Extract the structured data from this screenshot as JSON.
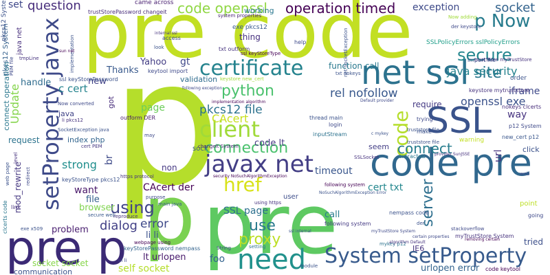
{
  "words": [
    {
      "text": "p",
      "color": "#b5de2b"
    },
    {
      "text": "pre code",
      "color": "#c2df23"
    },
    {
      "text": "pre",
      "color": "#5ec962"
    },
    {
      "text": "code pre",
      "color": "#31688e"
    },
    {
      "text": "p",
      "color": "#7ad151"
    },
    {
      "text": "pre p",
      "color": "#3b2a75"
    },
    {
      "text": "net ssl",
      "color": "#2c728e"
    },
    {
      "text": "SSL",
      "color": "#3a538b"
    },
    {
      "text": "javax net",
      "color": "#433e85"
    },
    {
      "text": "setProperty javax",
      "color": "#3e4a89"
    },
    {
      "text": "need",
      "color": "#21918c"
    },
    {
      "text": "System setProperty",
      "color": "#375a8c"
    },
    {
      "text": "certificate",
      "color": "#25838e"
    },
    {
      "text": "code",
      "color": "#b5de2b"
    },
    {
      "text": "client",
      "color": "#a0da39"
    },
    {
      "text": "p Now",
      "color": "#287c8e"
    },
    {
      "text": "secure",
      "color": "#24868e"
    },
    {
      "text": "connection",
      "color": "#4ac16d"
    },
    {
      "text": "href",
      "color": "#d8e219"
    },
    {
      "text": "proxy",
      "color": "#bddf26"
    },
    {
      "text": "use",
      "color": "#29798e"
    },
    {
      "text": "code openssl",
      "color": "#90d743"
    },
    {
      "text": "operation timed",
      "color": "#440154"
    },
    {
      "text": "question",
      "color": "#472d7b"
    },
    {
      "text": "python",
      "color": "#4ac16d"
    },
    {
      "text": "using",
      "color": "#414487"
    },
    {
      "text": "server",
      "color": "#2e6f8e"
    },
    {
      "text": "site",
      "color": "#2a788e"
    },
    {
      "text": "socket",
      "color": "#33638d"
    },
    {
      "text": "pkcs12 file",
      "color": "#2c728e"
    },
    {
      "text": "connect",
      "color": "#287d8e"
    },
    {
      "text": "openssl exe",
      "color": "#3b528b"
    },
    {
      "text": "java security",
      "color": "#26828e"
    },
    {
      "text": "dialog",
      "color": "#424086"
    },
    {
      "text": "error",
      "color": "#3e4989"
    },
    {
      "text": "SSL page",
      "color": "#2d708e"
    },
    {
      "text": "CAcert der",
      "color": "#440154"
    },
    {
      "text": "c cert",
      "color": "#25848e"
    },
    {
      "text": "rel nofollow",
      "color": "#38588c"
    },
    {
      "text": "strong",
      "color": "#218f8d"
    },
    {
      "text": "page",
      "color": "#6ccd5a"
    },
    {
      "text": "CAcert",
      "color": "#c8e020"
    },
    {
      "text": "Update",
      "color": "#84d44b"
    },
    {
      "text": "cert txt",
      "color": "#24878e"
    },
    {
      "text": "foo",
      "color": "#33638d"
    },
    {
      "text": "self socket",
      "color": "#b5de2b"
    },
    {
      "text": "socket socket",
      "color": "#86d549"
    },
    {
      "text": "exception",
      "color": "#3e4a89"
    },
    {
      "text": "Thanks",
      "color": "#38598c"
    },
    {
      "text": "Yahoo",
      "color": "#433d84"
    },
    {
      "text": "gt",
      "color": "#3f4889"
    },
    {
      "text": "new",
      "color": "#414287"
    },
    {
      "text": "handle",
      "color": "#2f6c8e"
    },
    {
      "text": "iframe",
      "color": "#3e4989"
    },
    {
      "text": "code lt",
      "color": "#453882"
    },
    {
      "text": "timeout",
      "color": "#39568c"
    },
    {
      "text": "url",
      "color": "#46327e"
    },
    {
      "text": "way",
      "color": "#46337f"
    },
    {
      "text": "call",
      "color": "#287c8e"
    },
    {
      "text": "lt urlopen",
      "color": "#481a6c"
    },
    {
      "text": "urlopen error",
      "color": "#33638d"
    },
    {
      "text": "want",
      "color": "#481769"
    },
    {
      "text": "file",
      "color": "#34618d"
    },
    {
      "text": "browser",
      "color": "#7fd34e"
    },
    {
      "text": "problem",
      "color": "#481d6f"
    },
    {
      "text": "li li",
      "color": "#3b528b"
    },
    {
      "text": "require",
      "color": "#443983"
    },
    {
      "text": "function call",
      "color": "#29798e"
    },
    {
      "text": "request",
      "color": "#2c738e"
    },
    {
      "text": "index php",
      "color": "#32658e"
    },
    {
      "text": "mod_rewrite",
      "color": "#453781"
    },
    {
      "text": "communication",
      "color": "#3b528b"
    },
    {
      "text": "tried",
      "color": "#3c4f8a"
    },
    {
      "text": "set",
      "color": "#3f4889"
    },
    {
      "text": "came across",
      "color": "#481f70"
    },
    {
      "text": "working",
      "color": "#2a778e"
    },
    {
      "text": "validation",
      "color": "#2f6c8e"
    },
    {
      "text": "thing",
      "color": "#46307e"
    },
    {
      "text": "got",
      "color": "#472c7a"
    },
    {
      "text": "br",
      "color": "#3e4a89"
    },
    {
      "text": "non",
      "color": "#453882"
    },
    {
      "text": "seem",
      "color": "#433e85"
    },
    {
      "text": "click",
      "color": "#3b528b"
    },
    {
      "text": "IE6",
      "color": "#46327e"
    },
    {
      "text": "user",
      "color": "#3d4d8a"
    },
    {
      "text": "java net",
      "color": "#472f7d"
    },
    {
      "text": "pkcs12 System",
      "color": "#35608d"
    },
    {
      "text": "trustStorePassword changeit",
      "color": "#472c7a"
    },
    {
      "text": "system properties",
      "color": "#482374"
    },
    {
      "text": "exe pkcs12",
      "color": "#38598c"
    },
    {
      "text": "keystore mytruststore",
      "color": "#46327e"
    },
    {
      "text": "SSLPolicyErrors sslPolicyErrors",
      "color": "#1f9e89"
    },
    {
      "text": "import file",
      "color": "#3b528b"
    },
    {
      "text": "java",
      "color": "#414487"
    },
    {
      "text": "new_cert p12",
      "color": "#39568c"
    },
    {
      "text": "p12 System",
      "color": "#3e4989"
    },
    {
      "text": "nokeys clcerts",
      "color": "#472d7b"
    },
    {
      "text": "following system",
      "color": "#443983"
    },
    {
      "text": "outform DER",
      "color": "#481b6d"
    },
    {
      "text": "keytool import",
      "color": "#3e4989"
    },
    {
      "text": "thread main",
      "color": "#3b528b"
    },
    {
      "text": "login",
      "color": "#3e4989"
    },
    {
      "text": "inputStream",
      "color": "#2c728e"
    },
    {
      "text": "SSLSocket",
      "color": "#46327e"
    },
    {
      "text": "extracted",
      "color": "#2a778e"
    },
    {
      "text": "make",
      "color": "#3b528b"
    },
    {
      "text": "trying",
      "color": "#3e4989"
    },
    {
      "text": "sock",
      "color": "#38598c"
    },
    {
      "text": "changeit System",
      "color": "#482475"
    },
    {
      "text": "cert PEM",
      "color": "#453882"
    },
    {
      "text": "keyStorePassword nempass",
      "color": "#33638d"
    },
    {
      "text": "webpage using",
      "color": "#440154"
    },
    {
      "text": "nempass code",
      "color": "#3b528b"
    },
    {
      "text": "myTrustStore System",
      "color": "#46327e"
    },
    {
      "text": "stackoverflow",
      "color": "#3e4989"
    },
    {
      "text": "code keytool",
      "color": "#440154"
    },
    {
      "text": "keyStoreType pkcs12",
      "color": "#3b528b"
    },
    {
      "text": "mykey p12",
      "color": "#2c728e"
    },
    {
      "text": "point",
      "color": "#bddf26"
    },
    {
      "text": "going",
      "color": "#3e4989"
    },
    {
      "text": "secure web",
      "color": "#38598c"
    },
    {
      "text": "ul li",
      "color": "#3e4989"
    },
    {
      "text": "reproduce",
      "color": "#46327e"
    },
    {
      "text": "exe x509",
      "color": "#3b528b"
    },
    {
      "text": "clcerts code",
      "color": "#2a778e"
    },
    {
      "text": "main java",
      "color": "#38598c"
    },
    {
      "text": "purpose",
      "color": "#3e4989"
    },
    {
      "text": "https protocol",
      "color": "#46327e"
    },
    {
      "text": "security NoSuchAlgorithmException",
      "color": "#440154"
    },
    {
      "text": "module",
      "color": "#3b528b"
    },
    {
      "text": "setting",
      "color": "#2c728e"
    },
    {
      "text": "certain properties",
      "color": "#3e4989"
    },
    {
      "text": "algorithm Default",
      "color": "#46327e"
    },
    {
      "text": "removing certain",
      "color": "#440154"
    },
    {
      "text": "der",
      "color": "#3b528b"
    },
    {
      "text": "Now adding",
      "color": "#a0da39"
    },
    {
      "text": "der keystore",
      "color": "#3e4989"
    },
    {
      "text": "truststore file",
      "color": "#3b528b"
    },
    {
      "text": "warning",
      "color": "#c2df23"
    },
    {
      "text": "access",
      "color": "#3e4989"
    },
    {
      "text": "internal ssl",
      "color": "#46327e"
    },
    {
      "text": "look",
      "color": "#3b528b"
    },
    {
      "text": "help",
      "color": "#3e4989"
    },
    {
      "text": "txt outform",
      "color": "#46327e"
    },
    {
      "text": "ssl keyStoreType",
      "color": "#440154"
    },
    {
      "text": "txt nokeys",
      "color": "#3b528b"
    },
    {
      "text": "following exception",
      "color": "#3e4989"
    },
    {
      "text": "implementation algorithm",
      "color": "#440154"
    },
    {
      "text": "trustStore myTrustStore",
      "color": "#46327e"
    },
    {
      "text": "ssl keyStorePassword",
      "color": "#3b528b"
    },
    {
      "text": "keystore new_cert",
      "color": "#a0da39"
    },
    {
      "text": "Now converted",
      "color": "#3e4989"
    },
    {
      "text": "SocketException java",
      "color": "#3b528b"
    },
    {
      "text": "li pkcs12",
      "color": "#46327e"
    },
    {
      "text": "may",
      "color": "#3e4989"
    },
    {
      "text": "using https",
      "color": "#46327e"
    },
    {
      "text": "ssl internal",
      "color": "#3b528b"
    },
    {
      "text": "following system",
      "color": "#440154"
    },
    {
      "text": "NoSuchAlgorithmException Error",
      "color": "#3b528b"
    },
    {
      "text": "myTrustStore System",
      "color": "#3e4989"
    },
    {
      "text": "link",
      "color": "#46327e"
    },
    {
      "text": "web page",
      "color": "#3b528b"
    },
    {
      "text": "redirect",
      "color": "#3e4989"
    },
    {
      "text": "level",
      "color": "#46327e"
    },
    {
      "text": "connect operation",
      "color": "#2a778e"
    },
    {
      "text": "pkcs12 System",
      "color": "#3b528b"
    },
    {
      "text": "PEM file",
      "color": "#3e4989"
    },
    {
      "text": "tmpLine",
      "color": "#46327e"
    },
    {
      "text": "implementation",
      "color": "#3b528b"
    },
    {
      "text": "sun net",
      "color": "#440154"
    },
    {
      "text": "net SocketException",
      "color": "#3b528b"
    },
    {
      "text": "Default provider",
      "color": "#3e4989"
    },
    {
      "text": "c mykey",
      "color": "#3b528b"
    },
    {
      "text": "provider SunJSSE",
      "color": "#46327e"
    },
    {
      "text": "web",
      "color": "#3e4989"
    },
    {
      "text": "order",
      "color": "#3b528b"
    },
    {
      "text": "String",
      "color": "#3e4989"
    },
    {
      "text": "truststore file",
      "color": "#3b528b"
    }
  ]
}
